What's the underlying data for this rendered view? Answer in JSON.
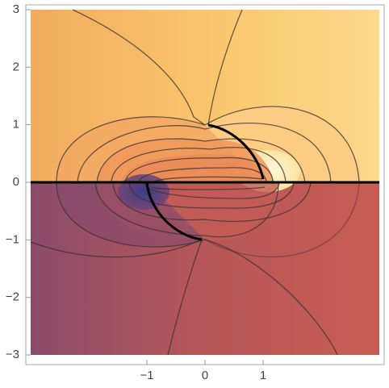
{
  "chart_data": {
    "type": "contour",
    "xlim": [
      -3,
      3
    ],
    "ylim": [
      -3,
      3
    ],
    "xticks": [
      {
        "value": -1,
        "label": "−1"
      },
      0,
      1
    ],
    "yticks": [
      {
        "value": -3,
        "label": "−3"
      },
      {
        "value": -2,
        "label": "−2"
      },
      {
        "value": -1,
        "label": "−1"
      },
      0,
      1,
      2,
      3
    ]
  }
}
